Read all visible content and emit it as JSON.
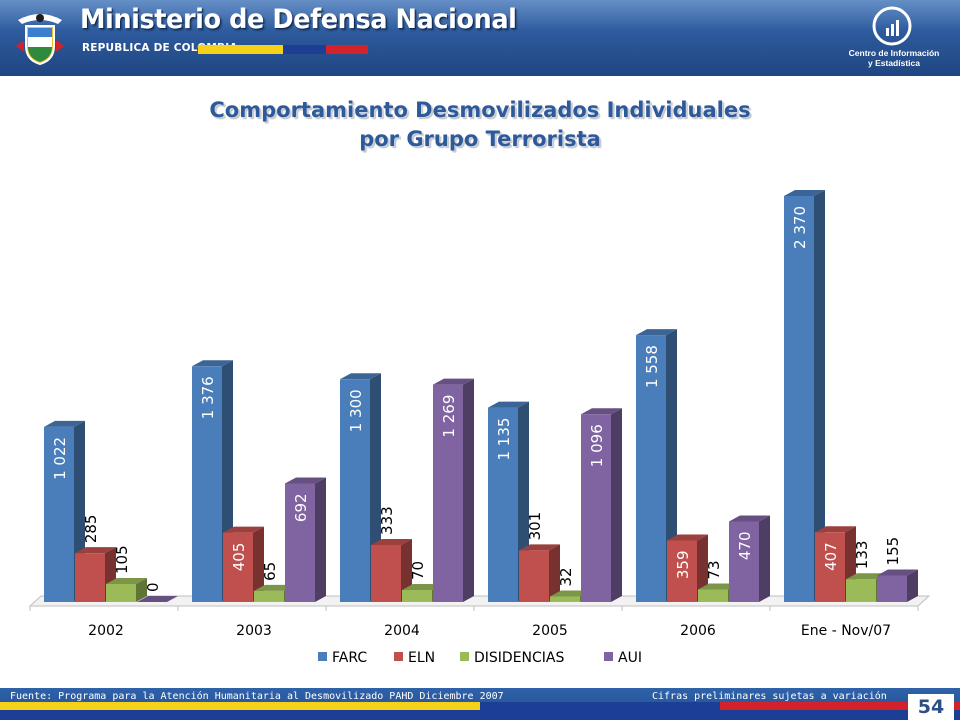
{
  "header": {
    "title": "Ministerio de Defensa Nacional",
    "subtitle": "REPUBLICA DE COLOMBIA",
    "info_center_line1": "Centro de Información",
    "info_center_line2": "y Estadística"
  },
  "colors": {
    "farc": "#4a7ebb",
    "eln": "#c0504d",
    "disidencias": "#9bbb59",
    "aui": "#8064a2",
    "title": "#2f5a9a"
  },
  "footer": {
    "source": "Fuente: Programa para la Atención Humanitaria al Desmovilizado PAHD Diciembre 2007",
    "preliminary": "Cifras preliminares sujetas a variación",
    "page_number": "54"
  },
  "chart_data": {
    "type": "bar",
    "title_line1": "Comportamiento Desmovilizados Individuales",
    "title_line2": "por Grupo Terrorista",
    "categories": [
      "2002",
      "2003",
      "2004",
      "2005",
      "2006",
      "Ene - Nov/07"
    ],
    "series": [
      {
        "name": "FARC",
        "values": [
          1022,
          1376,
          1300,
          1135,
          1558,
          2370
        ],
        "labels": [
          "1 022",
          "1 376",
          "1 300",
          "1 135",
          "1 558",
          "2 370"
        ]
      },
      {
        "name": "ELN",
        "values": [
          285,
          405,
          333,
          301,
          359,
          407
        ],
        "labels": [
          "285",
          "405",
          "333",
          "301",
          "359",
          "407"
        ]
      },
      {
        "name": "DISIDENCIAS",
        "values": [
          105,
          65,
          70,
          32,
          73,
          133
        ],
        "labels": [
          "105",
          "65",
          "70",
          "32",
          "73",
          "133"
        ]
      },
      {
        "name": "AUI",
        "values": [
          0,
          692,
          1269,
          1096,
          470,
          155
        ],
        "labels": [
          "0",
          "692",
          "1 269",
          "1 096",
          "470",
          "155"
        ]
      }
    ],
    "ylim": [
      0,
      2500
    ],
    "legend_position": "bottom",
    "grid": false,
    "style": "3d-column"
  }
}
